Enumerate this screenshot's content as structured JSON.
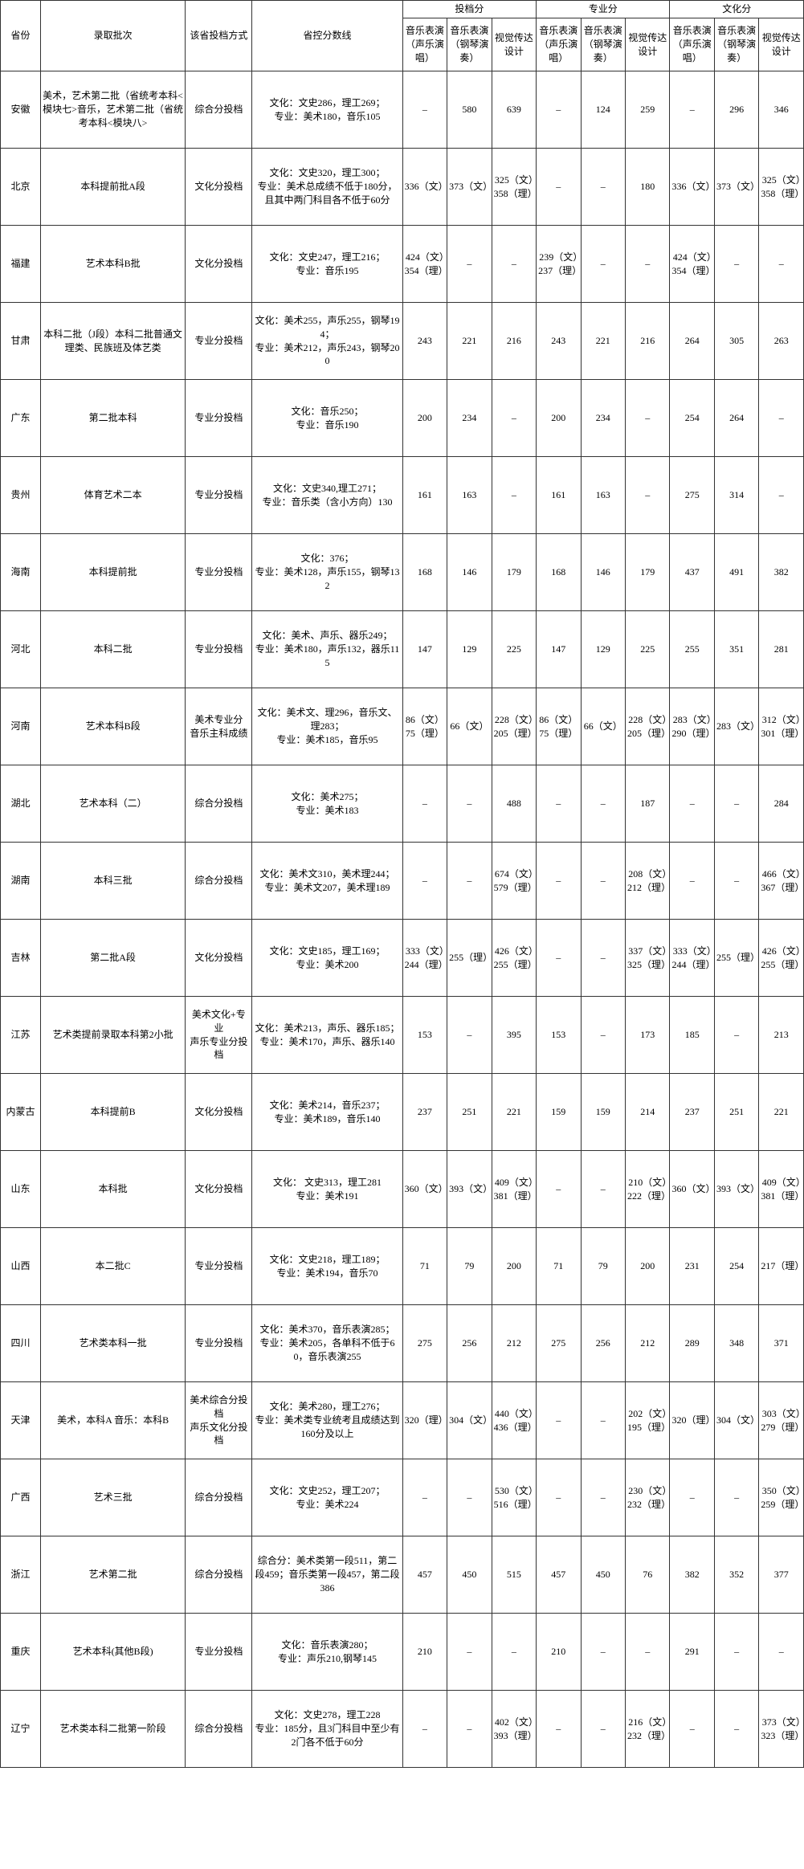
{
  "header": {
    "province": "省份",
    "batch": "录取批次",
    "method": "该省投档方式",
    "control": "省控分数线",
    "groups": [
      "投档分",
      "专业分",
      "文化分"
    ],
    "subs": [
      "音乐表演（声乐演唱）",
      "音乐表演（钢琴演奏）",
      "视觉传达设计"
    ]
  },
  "rows": [
    {
      "p": "安徽",
      "b": "美术，艺术第二批（省统考本科<模块七>音乐，艺术第二批（省统考本科<模块八>",
      "m": "综合分投档",
      "c": "文化：文史286，理工269；\n专业：美术180，音乐105",
      "s": [
        "–",
        "580",
        "639",
        "–",
        "124",
        "259",
        "–",
        "296",
        "346"
      ]
    },
    {
      "p": "北京",
      "b": "本科提前批A段",
      "m": "文化分投档",
      "c": "文化：文史320，理工300；\n专业：美术总成绩不低于180分，且其中两门科目各不低于60分",
      "s": [
        "336（文）",
        "373（文）",
        "325（文）358（理）",
        "–",
        "–",
        "180",
        "336（文）",
        "373（文）",
        "325（文）358（理）"
      ]
    },
    {
      "p": "福建",
      "b": "艺术本科B批",
      "m": "文化分投档",
      "c": "文化：文史247，理工216；\n专业：音乐195",
      "s": [
        "424（文）354（理）",
        "–",
        "–",
        "239（文）237（理）",
        "–",
        "–",
        "424（文）354（理）",
        "–",
        "–"
      ]
    },
    {
      "p": "甘肃",
      "b": "本科二批（J段）本科二批普通文理类、民族班及体艺类",
      "m": "专业分投档",
      "c": "文化：美术255，声乐255，钢琴194；\n专业：美术212，声乐243，钢琴200",
      "s": [
        "243",
        "221",
        "216",
        "243",
        "221",
        "216",
        "264",
        "305",
        "263"
      ]
    },
    {
      "p": "广东",
      "b": "第二批本科",
      "m": "专业分投档",
      "c": "文化：音乐250；\n专业：音乐190",
      "s": [
        "200",
        "234",
        "–",
        "200",
        "234",
        "–",
        "254",
        "264",
        "–"
      ]
    },
    {
      "p": "贵州",
      "b": "体育艺术二本",
      "m": "专业分投档",
      "c": "文化：文史340,理工271；\n专业：音乐类（含小方向）130",
      "s": [
        "161",
        "163",
        "–",
        "161",
        "163",
        "–",
        "275",
        "314",
        "–"
      ]
    },
    {
      "p": "海南",
      "b": "本科提前批",
      "m": "专业分投档",
      "c": "文化：376；\n专业：美术128，声乐155，钢琴132",
      "s": [
        "168",
        "146",
        "179",
        "168",
        "146",
        "179",
        "437",
        "491",
        "382"
      ]
    },
    {
      "p": "河北",
      "b": "本科二批",
      "m": "专业分投档",
      "c": "文化：美术、声乐、器乐249；\n专业：美术180，声乐132，器乐115",
      "s": [
        "147",
        "129",
        "225",
        "147",
        "129",
        "225",
        "255",
        "351",
        "281"
      ]
    },
    {
      "p": "河南",
      "b": "艺术本科B段",
      "m": "美术专业分\n音乐主科成绩",
      "c": "文化：美术文、理296，音乐文、理283；\n专业：美术185，音乐95",
      "s": [
        "86（文）75（理）",
        "66（文）",
        "228（文）205（理）",
        "86（文）75（理）",
        "66（文）",
        "228（文）205（理）",
        "283（文）290（理）",
        "283（文）",
        "312（文）301（理）"
      ]
    },
    {
      "p": "湖北",
      "b": "艺术本科（二）",
      "m": "综合分投档",
      "c": "文化：美术275；\n专业：美术183",
      "s": [
        "–",
        "–",
        "488",
        "–",
        "–",
        "187",
        "–",
        "–",
        "284"
      ]
    },
    {
      "p": "湖南",
      "b": "本科三批",
      "m": "综合分投档",
      "c": "文化：美术文310，美术理244；\n专业：美术文207，美术理189",
      "s": [
        "–",
        "–",
        "674（文）579（理）",
        "–",
        "–",
        "208（文）212（理）",
        "–",
        "–",
        "466（文）367（理）"
      ]
    },
    {
      "p": "吉林",
      "b": "第二批A段",
      "m": "文化分投档",
      "c": "文化：文史185，理工169；\n专业：美术200",
      "s": [
        "333（文）244（理）",
        "255（理）",
        "426（文）255（理）",
        "–",
        "–",
        "337（文）325（理）",
        "333（文）244（理）",
        "255（理）",
        "426（文）255（理）"
      ]
    },
    {
      "p": "江苏",
      "b": "艺术类提前录取本科第2小批",
      "m": "美术文化+专业\n声乐专业分投档",
      "c": "文化：美术213，声乐、器乐185；\n专业：美术170，声乐、器乐140",
      "s": [
        "153",
        "–",
        "395",
        "153",
        "–",
        "173",
        "185",
        "–",
        "213"
      ]
    },
    {
      "p": "内蒙古",
      "b": "本科提前B",
      "m": "文化分投档",
      "c": "文化：美术214，音乐237；\n专业：美术189，音乐140",
      "s": [
        "237",
        "251",
        "221",
        "159",
        "159",
        "214",
        "237",
        "251",
        "221"
      ]
    },
    {
      "p": "山东",
      "b": "本科批",
      "m": "文化分投档",
      "c": "文化： 文史313，理工281\n专业：美术191",
      "s": [
        "360（文）",
        "393（文）",
        "409（文）381（理）",
        "–",
        "–",
        "210（文）222（理）",
        "360（文）",
        "393（文）",
        "409（文）381（理）"
      ]
    },
    {
      "p": "山西",
      "b": "本二批C",
      "m": "专业分投档",
      "c": "文化：文史218，理工189；\n专业：美术194，音乐70",
      "s": [
        "71",
        "79",
        "200",
        "71",
        "79",
        "200",
        "231",
        "254",
        "217（理）"
      ]
    },
    {
      "p": "四川",
      "b": "艺术类本科一批",
      "m": "专业分投档",
      "c": "文化：美术370，音乐表演285；\n专业：美术205，各单科不低于60，音乐表演255",
      "s": [
        "275",
        "256",
        "212",
        "275",
        "256",
        "212",
        "289",
        "348",
        "371"
      ]
    },
    {
      "p": "天津",
      "b": "美术，本科A\n音乐：本科B",
      "m": "美术综合分投档\n声乐文化分投档",
      "c": "文化：美术280，理工276；\n专业：美术类专业统考且成绩达到160分及以上",
      "s": [
        "320（理）",
        "304（文）",
        "440（文）436（理）",
        "–",
        "–",
        "202（文）195（理）",
        "320（理）",
        "304（文）",
        "303（文）279（理）"
      ]
    },
    {
      "p": "广西",
      "b": "艺术三批",
      "m": "综合分投档",
      "c": "文化：文史252，理工207；\n专业：美术224",
      "s": [
        "–",
        "–",
        "530（文）516（理）",
        "–",
        "–",
        "230（文）232（理）",
        "–",
        "–",
        "350（文）259（理）"
      ]
    },
    {
      "p": "浙江",
      "b": "艺术第二批",
      "m": "综合分投档",
      "c": "综合分：美术类第一段511，第二段459；音乐类第一段457，第二段386",
      "s": [
        "457",
        "450",
        "515",
        "457",
        "450",
        "76",
        "382",
        "352",
        "377"
      ]
    },
    {
      "p": "重庆",
      "b": "艺术本科(其他B段)",
      "m": "专业分投档",
      "c": "文化：音乐表演280；\n专业：声乐210,钢琴145",
      "s": [
        "210",
        "–",
        "–",
        "210",
        "–",
        "–",
        "291",
        "–",
        "–"
      ]
    },
    {
      "p": "辽宁",
      "b": "艺术类本科二批第一阶段",
      "m": "综合分投档",
      "c": "文化：文史278，理工228\n专业：185分，且3门科目中至少有2门各不低于60分",
      "s": [
        "–",
        "–",
        "402（文）393（理）",
        "–",
        "–",
        "216（文）232（理）",
        "–",
        "–",
        "373（文）323（理）"
      ]
    }
  ]
}
